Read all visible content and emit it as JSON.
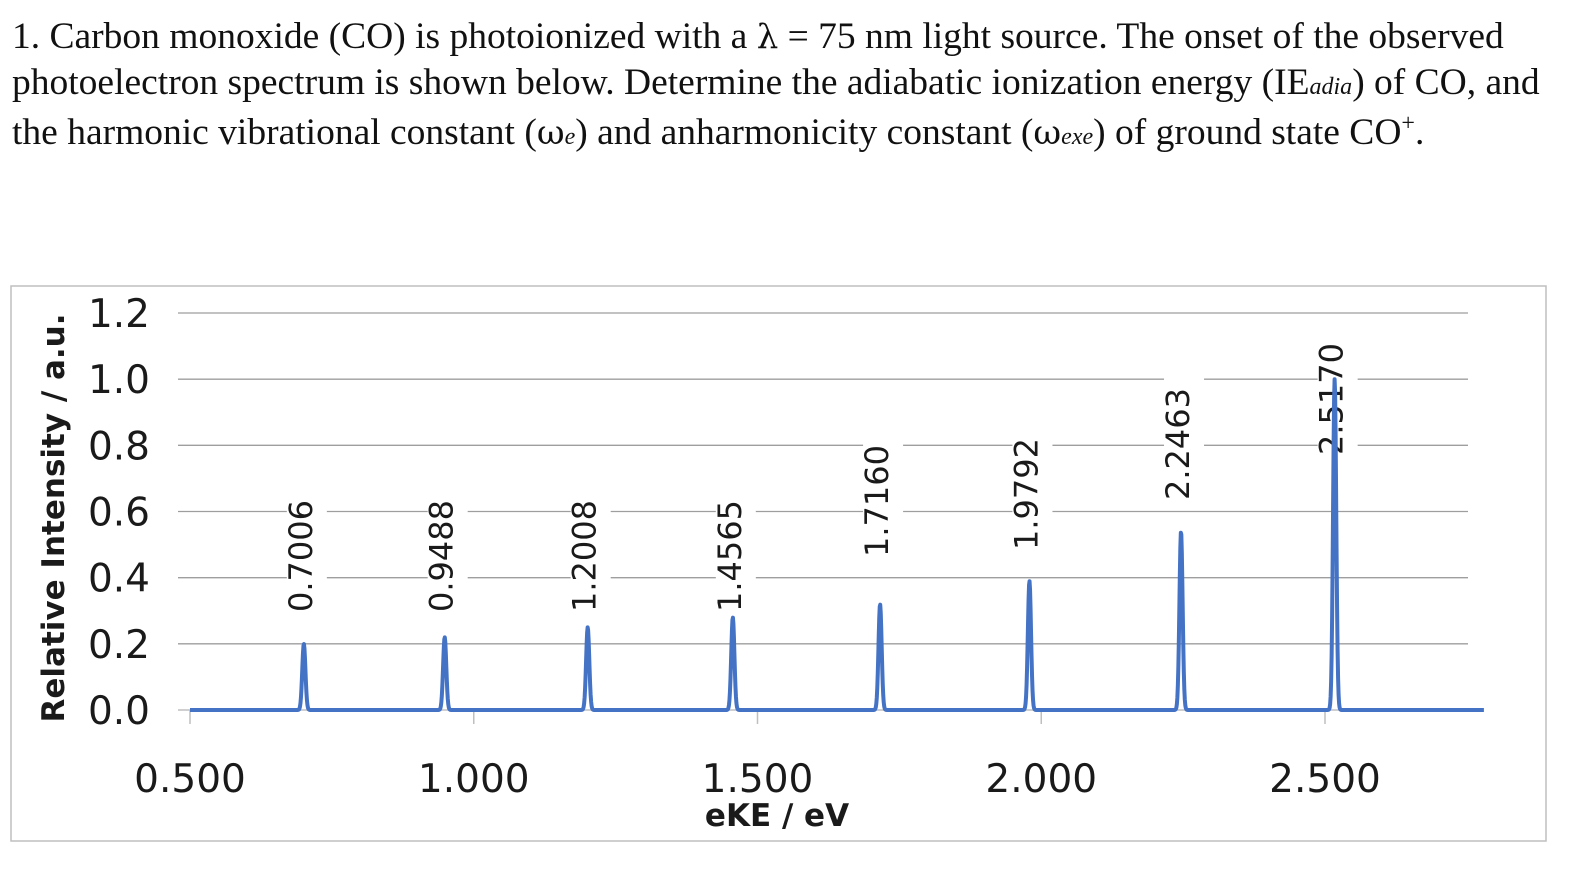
{
  "question": {
    "part1": "1. Carbon monoxide (CO) is photoionized with a ",
    "lambda_symbol": "λ",
    "part2": " = 75 nm light source. The onset of the observed photoelectron spectrum is shown below. Determine the adiabatic ionization energy (IE",
    "sub_adia": "adia",
    "part3": ") of CO, and the harmonic vibrational constant (",
    "omega1": "ω",
    "sub_e1": "e",
    "part4": ") and anharmonicity constant (",
    "omega2": "ω",
    "sub_exe": "e",
    "x_char": "x",
    "sub_e2": "e",
    "part5": ") of ground state CO",
    "sup_plus": "+",
    "part6": "."
  },
  "chart_data": {
    "type": "line",
    "xlabel": "eKE / eV",
    "ylabel": "Relative Intensity / a.u.",
    "xlim": [
      0.5,
      2.75
    ],
    "ylim": [
      0,
      1.2
    ],
    "x_ticks": [
      0.5,
      1.0,
      1.5,
      2.0,
      2.5
    ],
    "x_tick_labels": [
      "0.500",
      "1.000",
      "1.500",
      "2.000",
      "2.500"
    ],
    "y_ticks": [
      0,
      0.2,
      0.4,
      0.6,
      0.8,
      1.0,
      1.2
    ],
    "y_tick_labels": [
      "0.0",
      "0.2",
      "0.4",
      "0.6",
      "0.8",
      "1.0",
      "1.2"
    ],
    "grid": true,
    "legend": "none",
    "line_color": "#4472c4",
    "peaks": [
      {
        "x": 0.7006,
        "y": 0.2,
        "label": "0.7006"
      },
      {
        "x": 0.9488,
        "y": 0.22,
        "label": "0.9488"
      },
      {
        "x": 1.2008,
        "y": 0.25,
        "label": "1.2008"
      },
      {
        "x": 1.4565,
        "y": 0.28,
        "label": "1.4565"
      },
      {
        "x": 1.716,
        "y": 0.32,
        "label": "1.7160"
      },
      {
        "x": 1.9792,
        "y": 0.39,
        "label": "1.9792"
      },
      {
        "x": 2.2463,
        "y": 0.54,
        "label": "2.2463"
      },
      {
        "x": 2.517,
        "y": 1.0,
        "label": "2.5170"
      }
    ]
  }
}
